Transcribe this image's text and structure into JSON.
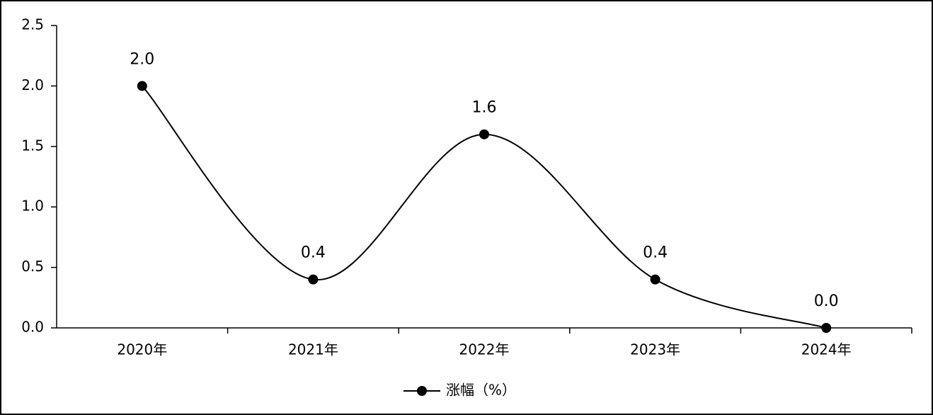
{
  "chart_data": {
    "type": "line",
    "categories": [
      "2020年",
      "2021年",
      "2022年",
      "2023年",
      "2024年"
    ],
    "series": [
      {
        "name": "涨幅（%）",
        "color": "#000000",
        "values": [
          2.0,
          0.4,
          1.6,
          0.4,
          0.0
        ],
        "value_labels": [
          "2.0",
          "0.4",
          "1.6",
          "0.4",
          "0.0"
        ]
      }
    ],
    "ylim": [
      0,
      2.5
    ],
    "yticks": [
      {
        "value": 0,
        "label": "0.0"
      },
      0.5,
      {
        "value": 1,
        "label": "1.0"
      },
      1.5,
      {
        "value": 2,
        "label": "2.0"
      },
      2.5
    ],
    "smooth": true,
    "legend": "bottom"
  }
}
